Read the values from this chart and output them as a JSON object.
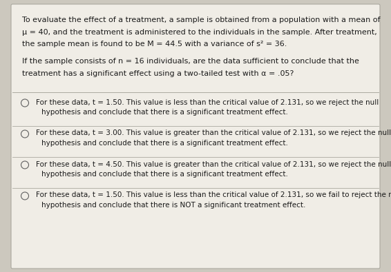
{
  "bg_color": "#ccc8be",
  "box_bg_color": "#f0ede6",
  "box_border_color": "#aaa89f",
  "divider_color": "#aaa89f",
  "text_color": "#1a1a1a",
  "question_lines": [
    "To evaluate the effect of a treatment, a sample is obtained from a population with a mean of",
    "μ = 40, and the treatment is administered to the individuals in the sample. After treatment,",
    "the sample mean is found to be M = 44.5 with a variance of s² = 36.",
    "",
    "If the sample consists of n = 16 individuals, are the data sufficient to conclude that the",
    "treatment has a significant effect using a two-tailed test with α = .05?"
  ],
  "options": [
    [
      "For these data, t = 1.50. This value is less than the critical value of 2.131, so we reject the null",
      "hypothesis and conclude that there is a significant treatment effect."
    ],
    [
      "For these data, t = 3.00. This value is greater than the critical value of 2.131, so we reject the null",
      "hypothesis and conclude that there is a significant treatment effect."
    ],
    [
      "For these data, t = 4.50. This value is greater than the critical value of 2.131, so we reject the null",
      "hypothesis and conclude that there is a significant treatment effect."
    ],
    [
      "For these data, t = 1.50. This value is less than the critical value of 2.131, so we fail to reject the null",
      "hypothesis and conclude that there is NOT a significant treatment effect."
    ]
  ],
  "font_size_q": 8.0,
  "font_size_opt": 7.5,
  "fig_width": 5.66,
  "fig_height": 3.95,
  "dpi": 100
}
